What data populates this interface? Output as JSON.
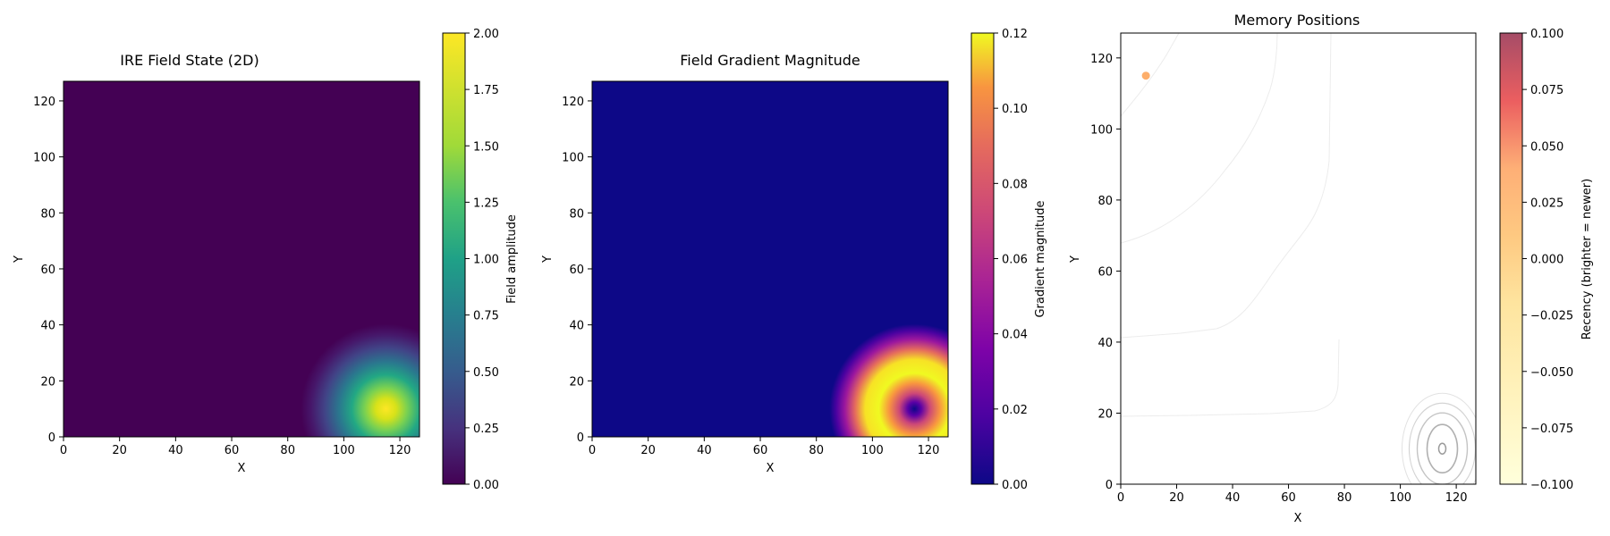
{
  "chart_data": [
    {
      "type": "heatmap",
      "title": "IRE Field State (2D)",
      "xlabel": "X",
      "ylabel": "Y",
      "xlim": [
        0,
        127
      ],
      "ylim": [
        0,
        127
      ],
      "xticks": [
        0,
        20,
        40,
        60,
        80,
        100,
        120
      ],
      "yticks": [
        0,
        20,
        40,
        60,
        80,
        100,
        120
      ],
      "colormap": "viridis",
      "peak": {
        "x": 115,
        "y": 10,
        "value": 2.0
      },
      "colorbar": {
        "label": "Field amplitude",
        "min": 0.0,
        "max": 2.0,
        "ticks": [
          "0.00",
          "0.25",
          "0.50",
          "0.75",
          "1.00",
          "1.25",
          "1.50",
          "1.75",
          "2.00"
        ]
      },
      "colors": {
        "low": "#440154",
        "mid": "#21918c",
        "high": "#fde725"
      }
    },
    {
      "type": "heatmap",
      "title": "Field Gradient Magnitude",
      "xlabel": "X",
      "ylabel": "Y",
      "xlim": [
        0,
        127
      ],
      "ylim": [
        0,
        127
      ],
      "xticks": [
        0,
        20,
        40,
        60,
        80,
        100,
        120
      ],
      "yticks": [
        0,
        20,
        40,
        60,
        80,
        100,
        120
      ],
      "colormap": "plasma",
      "center": {
        "x": 115,
        "y": 10,
        "value": 0.0
      },
      "colorbar": {
        "label": "Gradient magnitude",
        "min": 0.0,
        "max": 0.12,
        "ticks": [
          "0.00",
          "0.02",
          "0.04",
          "0.06",
          "0.08",
          "0.10",
          "0.12"
        ]
      },
      "colors": {
        "low": "#0d0887",
        "mid": "#cc4778",
        "high": "#f0f921"
      }
    },
    {
      "type": "scatter",
      "title": "Memory Positions",
      "xlabel": "X",
      "ylabel": "Y",
      "xlim": [
        0,
        127
      ],
      "ylim": [
        0,
        127
      ],
      "xticks": [
        0,
        20,
        40,
        60,
        80,
        100,
        120
      ],
      "yticks": [
        0,
        20,
        40,
        60,
        80,
        100,
        120
      ],
      "points": [
        {
          "x": 9,
          "y": 115,
          "recency": 0.0
        }
      ],
      "contour_center": {
        "x": 115,
        "y": 10
      },
      "colormap": "YlOrRd",
      "colorbar": {
        "label": "Recency (brighter = newer)",
        "min": -0.1,
        "max": 0.1,
        "ticks": [
          "−0.100",
          "−0.075",
          "−0.050",
          "−0.025",
          "0.000",
          "0.025",
          "0.050",
          "0.075",
          "0.100"
        ]
      },
      "colors": {
        "point": "#fdae6b",
        "contour": "#b0b0b0"
      }
    }
  ]
}
